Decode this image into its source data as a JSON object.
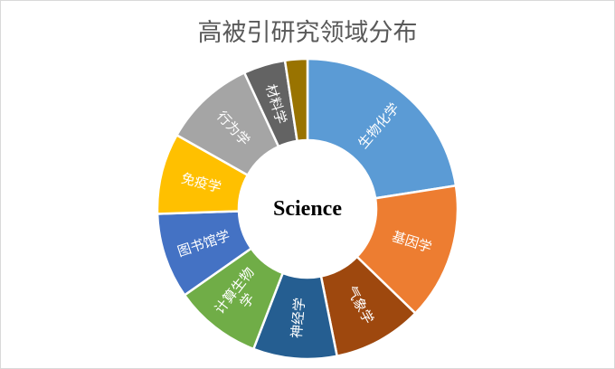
{
  "chart_data": {
    "type": "pie",
    "donut": true,
    "title": "高被引研究领域分布",
    "center_label": "Science",
    "categories": [
      "生物化学",
      "基因学",
      "气象学",
      "神经学",
      "计算生物学",
      "图书馆学",
      "免疫学",
      "行为学",
      "材料学",
      ""
    ],
    "values": [
      22.5,
      14.7,
      9.6,
      9.0,
      9.4,
      9.2,
      8.7,
      9.9,
      4.5,
      2.4
    ],
    "colors": [
      "#5B9BD5",
      "#ED7D31",
      "#9E480E",
      "#255E91",
      "#70AD47",
      "#4472C4",
      "#FFC000",
      "#A5A5A5",
      "#636363",
      "#997300"
    ],
    "legend": "none"
  }
}
